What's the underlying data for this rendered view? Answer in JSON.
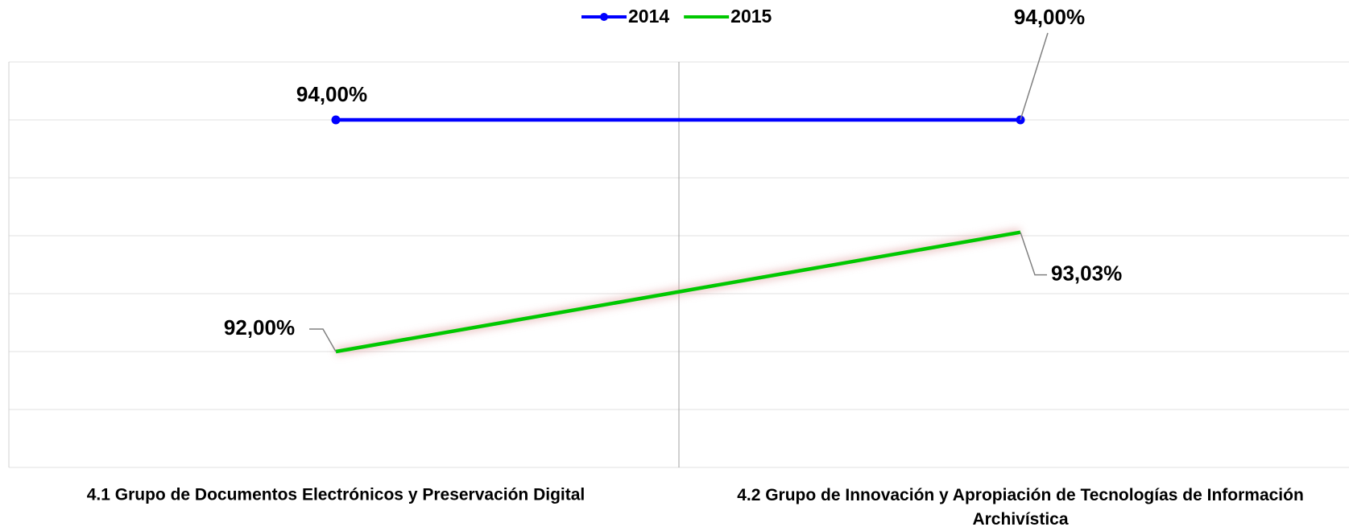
{
  "chart_data": {
    "type": "line",
    "categories": [
      "4.1 Grupo de Documentos Electrónicos y Preservación Digital",
      "4.2 Grupo de Innovación y Apropiación de Tecnologías de Información Archivística"
    ],
    "series": [
      {
        "name": "2014",
        "color": "#0000ff",
        "markers": true,
        "values": [
          94,
          94
        ],
        "value_labels": [
          "94,00%",
          "94,00%"
        ]
      },
      {
        "name": "2015",
        "color": "#00c800",
        "markers": false,
        "values": [
          92,
          93.03
        ],
        "value_labels": [
          "92,00%",
          "93,03%"
        ]
      }
    ],
    "ylim": [
      91,
      94.5
    ],
    "yticks": [
      91,
      91.5,
      92,
      92.5,
      93,
      93.5,
      94,
      94.5
    ],
    "grid": true,
    "legend": "top"
  }
}
